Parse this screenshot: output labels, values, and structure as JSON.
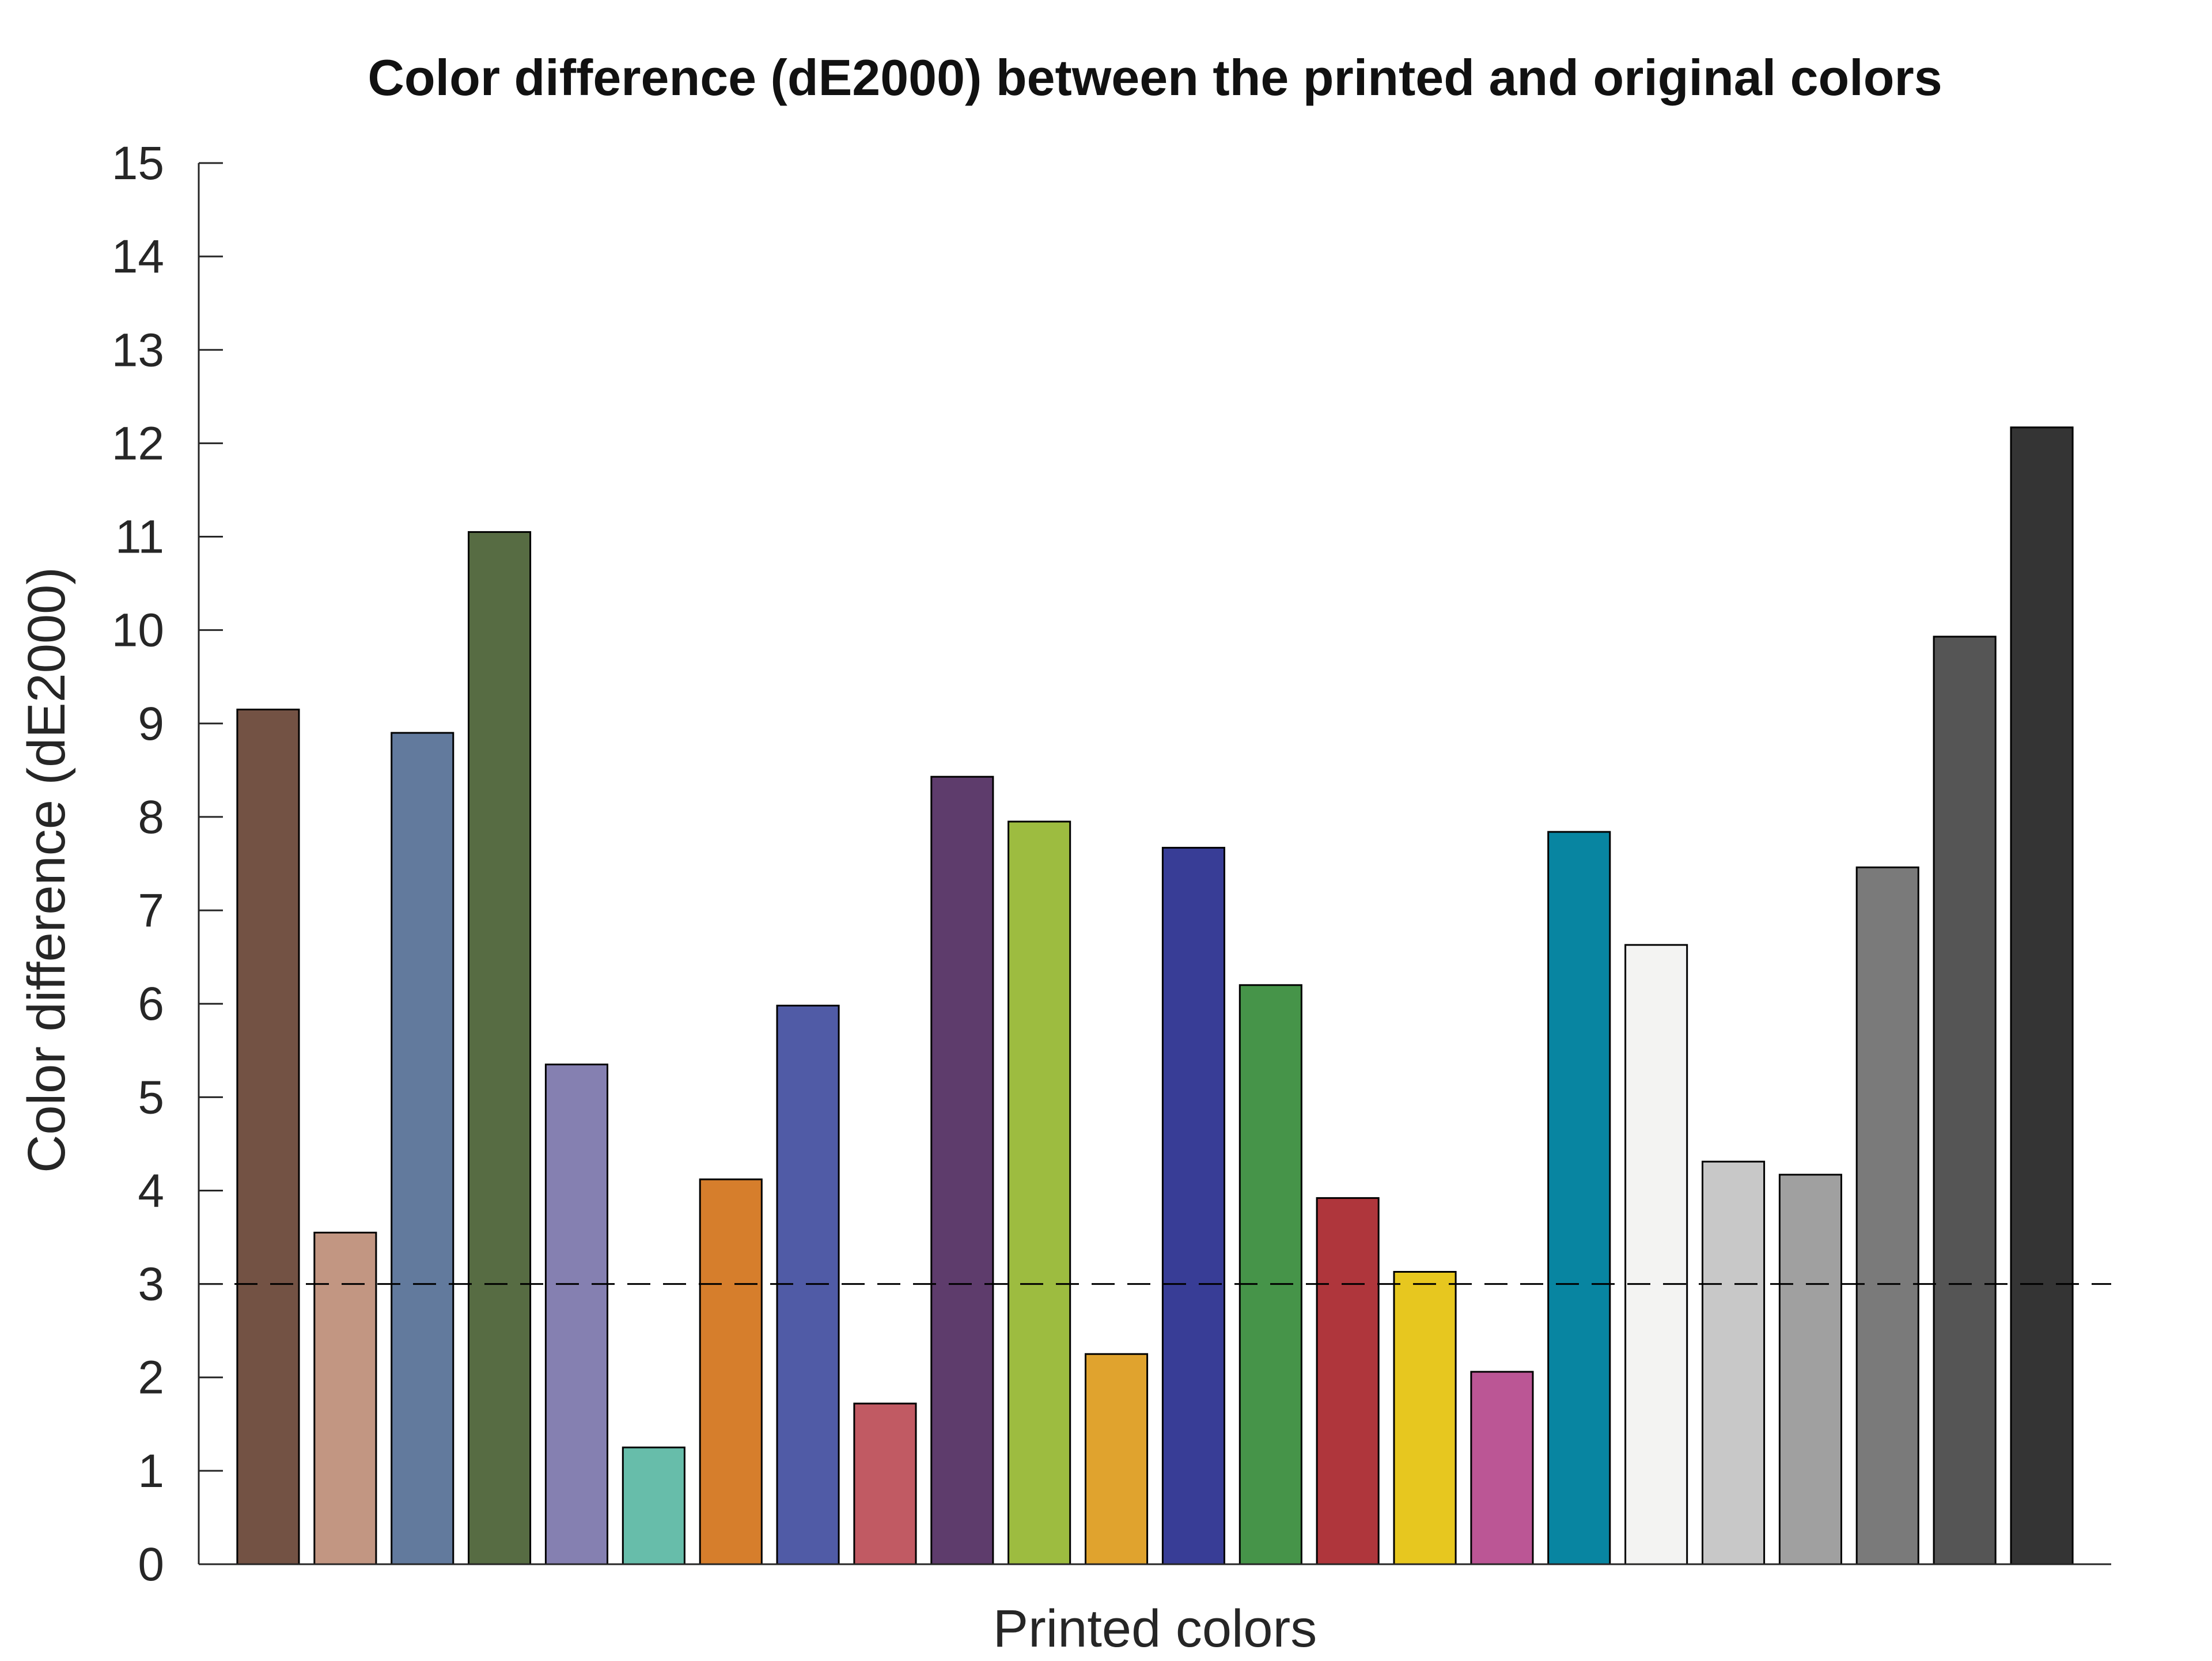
{
  "chart_data": {
    "type": "bar",
    "title": "Color difference (dE2000) between the printed and original colors",
    "xlabel": "Printed colors",
    "ylabel": "Color difference (dE2000)",
    "ylim": [
      0,
      15
    ],
    "yticks": [
      "0",
      "1",
      "2",
      "3",
      "4",
      "5",
      "6",
      "7",
      "8",
      "9",
      "10",
      "11",
      "12",
      "13",
      "14",
      "15"
    ],
    "grid": false,
    "reference_line": {
      "y": 3,
      "style": "dashed"
    },
    "values": [
      9.15,
      3.55,
      8.9,
      11.05,
      5.35,
      1.25,
      4.12,
      5.98,
      1.72,
      8.43,
      7.95,
      2.25,
      7.67,
      6.2,
      3.92,
      3.13,
      2.06,
      7.84,
      6.63,
      4.31,
      4.17,
      7.46,
      9.93,
      12.17
    ],
    "colors": [
      "#735244",
      "#c29682",
      "#627a9d",
      "#576c43",
      "#8580b1",
      "#67bdaa",
      "#d67e2c",
      "#505ba6",
      "#c15a63",
      "#5e3c6c",
      "#9dbc40",
      "#e0a32e",
      "#383d96",
      "#469449",
      "#af363c",
      "#e7c71f",
      "#bb5695",
      "#0885a1",
      "#f3f3f2",
      "#c8c8c8",
      "#a0a0a0",
      "#7a7a7a",
      "#555555",
      "#343434"
    ]
  }
}
